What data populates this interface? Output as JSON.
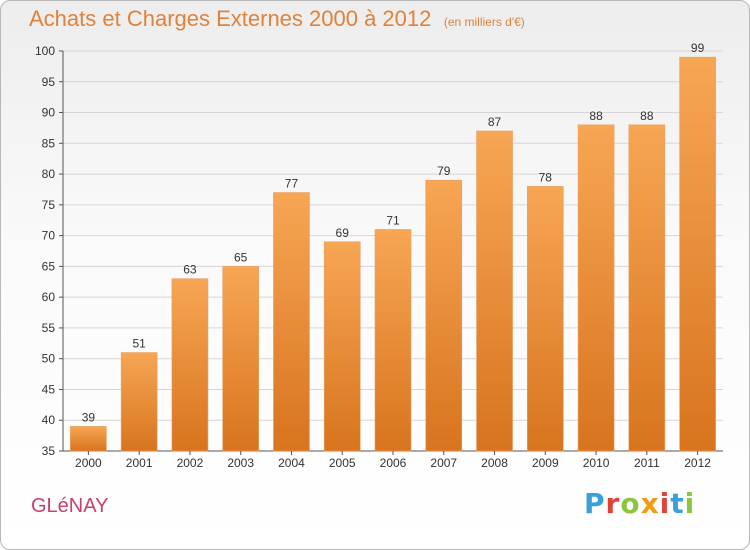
{
  "header": {
    "title": "Achats et Charges Externes 2000 à 2012",
    "subtitle": "(en milliers d'€)"
  },
  "footer": {
    "commune": "GLéNAY",
    "brand": "Proxiti",
    "brand_colors": [
      "#3aa0dc",
      "#e0433a",
      "#8cc63f",
      "#f39c12",
      "#e0433a",
      "#3aa0dc",
      "#8cc63f"
    ]
  },
  "colors": {
    "title": "#e0823a",
    "commune": "#c8406c",
    "bar_top": "#f7a654",
    "bar_bottom": "#d8741e",
    "grid": "#d6d6d6"
  },
  "chart_data": {
    "type": "bar",
    "categories": [
      "2000",
      "2001",
      "2002",
      "2003",
      "2004",
      "2005",
      "2006",
      "2007",
      "2008",
      "2009",
      "2010",
      "2011",
      "2012"
    ],
    "values": [
      39,
      51,
      63,
      65,
      77,
      69,
      71,
      79,
      87,
      78,
      88,
      88,
      99
    ],
    "ylim": [
      35,
      100
    ],
    "yticks": [
      35,
      40,
      45,
      50,
      55,
      60,
      65,
      70,
      75,
      80,
      85,
      90,
      95,
      100
    ],
    "grid": true
  }
}
